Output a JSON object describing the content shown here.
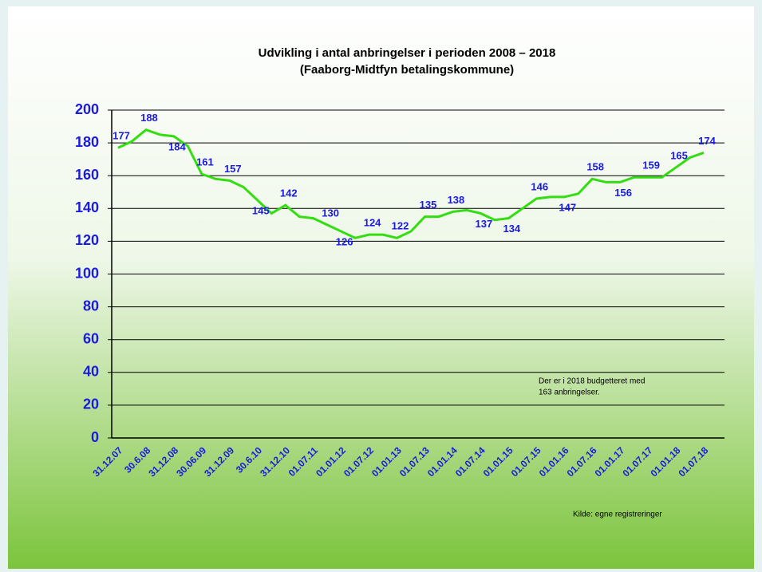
{
  "chart_data": {
    "type": "line",
    "title": "Udvikling i antal anbringelser i perioden 2008 – 2018",
    "subtitle": "(Faaborg-Midtfyn betalingskommune)",
    "categories": [
      "31.12.07",
      null,
      "30.6.08",
      null,
      "31.12.08",
      null,
      "30.06.09",
      null,
      "31.12.09",
      null,
      "30.6.10",
      null,
      "31.12.10",
      null,
      "01.07.11",
      null,
      "01.01.12",
      null,
      "01.07.12",
      null,
      "01.01.13",
      null,
      "01.07.13",
      null,
      "01.01.14",
      null,
      "01.07.14",
      null,
      "01.01.15",
      null,
      "01.07.15",
      null,
      "01.01.16",
      null,
      "01.07.16",
      null,
      "01.01.17",
      null,
      "01.07.17",
      null,
      "01.01.18",
      null,
      "01.07.18"
    ],
    "values": [
      177,
      181,
      188,
      185,
      184,
      178,
      161,
      158,
      157,
      153,
      145,
      137,
      142,
      135,
      134,
      130,
      126,
      122,
      124,
      124,
      122,
      126,
      135,
      135,
      138,
      139,
      137,
      133,
      134,
      140,
      146,
      147,
      147,
      149,
      158,
      156,
      156,
      159,
      159,
      159,
      165,
      171,
      174
    ],
    "value_labels": [
      "177",
      null,
      "188",
      null,
      "184",
      null,
      "161",
      null,
      "157",
      null,
      "145",
      null,
      "142",
      null,
      null,
      "130",
      "126",
      null,
      "124",
      null,
      "122",
      null,
      "135",
      null,
      "138",
      null,
      "137",
      null,
      "134",
      null,
      "146",
      null,
      "147",
      null,
      "158",
      null,
      "156",
      null,
      "159",
      null,
      "165",
      null,
      "174"
    ],
    "color": "#33dd11",
    "ylim": [
      0,
      200
    ],
    "yticks": [
      0,
      20,
      40,
      60,
      80,
      100,
      120,
      140,
      160,
      180,
      200
    ],
    "grid": true,
    "annotations": [
      "Der er i 2018 budgetteret med",
      "163 anbringelser.",
      "Kilde: egne registreringer"
    ]
  }
}
